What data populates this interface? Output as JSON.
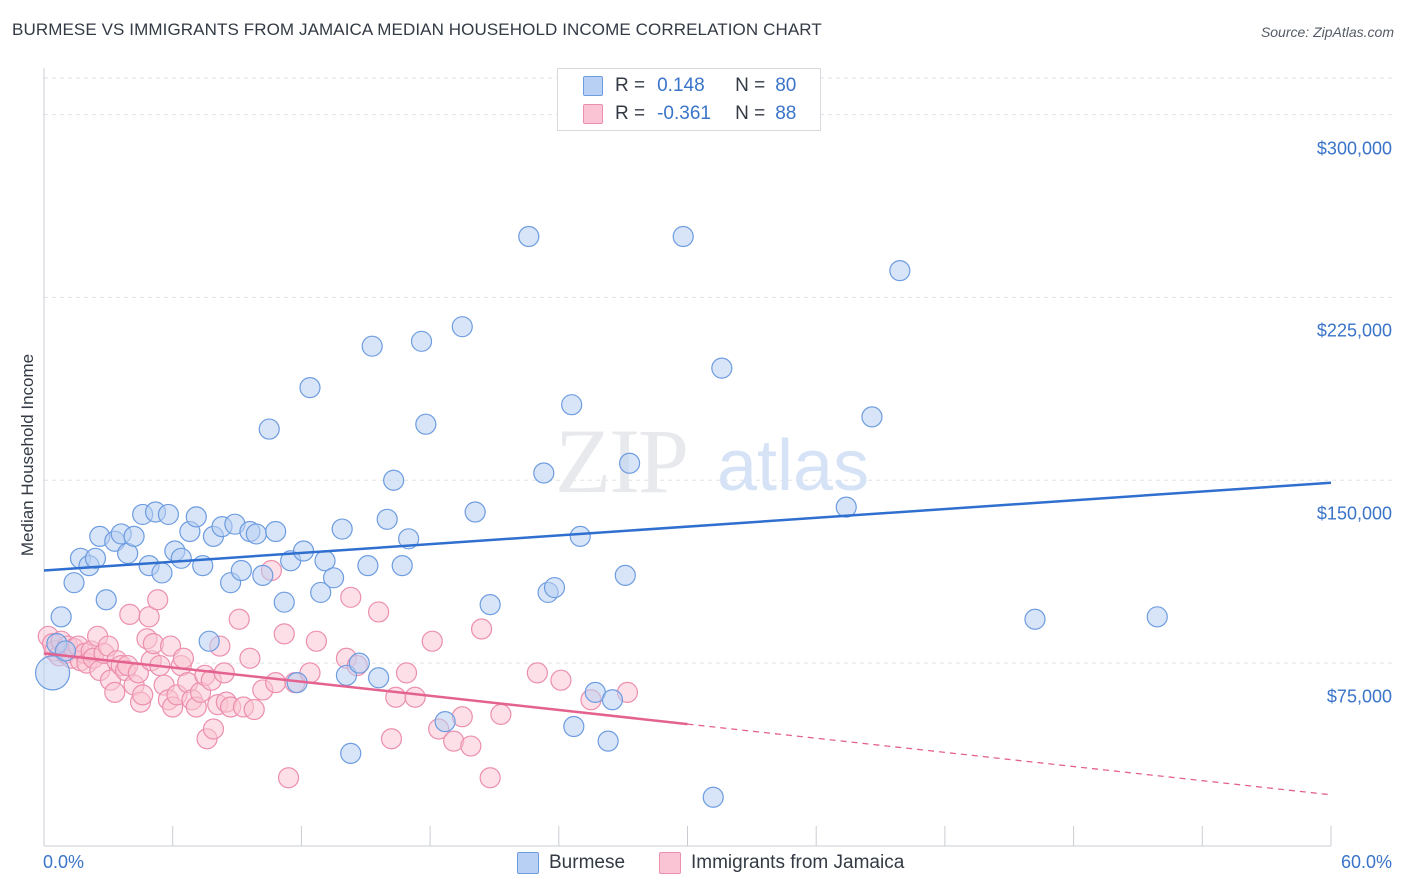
{
  "title": "BURMESE VS IMMIGRANTS FROM JAMAICA MEDIAN HOUSEHOLD INCOME CORRELATION CHART",
  "source": "Source: ZipAtlas.com",
  "watermark": {
    "zip": "ZIP",
    "atlas": "atlas"
  },
  "legend": {
    "rows": [
      {
        "r_label": "R =",
        "r_value": "0.148",
        "n_label": "N =",
        "n_value": "80"
      },
      {
        "r_label": "R =",
        "r_value": "-0.361",
        "n_label": "N =",
        "n_value": "88"
      }
    ]
  },
  "colors": {
    "blue_fill": "#b8d0f3",
    "blue_stroke": "#6d9ce0",
    "blue_line": "#2f6fcf",
    "pink_fill": "#fac4d4",
    "pink_stroke": "#ec8fae",
    "pink_line": "#e4628f",
    "tick_text": "#3a74c9"
  },
  "chart_data": {
    "type": "scatter",
    "title": "BURMESE VS IMMIGRANTS FROM JAMAICA MEDIAN HOUSEHOLD INCOME CORRELATION CHART",
    "xlabel": "",
    "ylabel": "Median Household Income",
    "xlim": [
      0,
      60
    ],
    "ylim": [
      0,
      315000
    ],
    "x_tick_labels": [
      "0.0%",
      "60.0%"
    ],
    "y_ticks": [
      75000,
      150000,
      225000,
      300000
    ],
    "y_tick_labels": [
      "$75,000",
      "$150,000",
      "$225,000",
      "$300,000"
    ],
    "grid": true,
    "legend_position": "top-center",
    "series": [
      {
        "name": "Burmese",
        "color": "#6d9ce0",
        "r": 0.148,
        "n": 80,
        "trend": {
          "x": [
            0,
            60
          ],
          "y": [
            113000,
            149000
          ],
          "extrapolated_from": null
        },
        "points": [
          [
            0.4,
            71000
          ],
          [
            0.8,
            94000
          ],
          [
            0.6,
            83000
          ],
          [
            1.0,
            80000
          ],
          [
            1.4,
            108000
          ],
          [
            1.7,
            118000
          ],
          [
            2.1,
            115000
          ],
          [
            2.4,
            118000
          ],
          [
            2.6,
            127000
          ],
          [
            2.9,
            101000
          ],
          [
            3.3,
            125000
          ],
          [
            3.6,
            128000
          ],
          [
            3.9,
            120000
          ],
          [
            4.2,
            127000
          ],
          [
            4.6,
            136000
          ],
          [
            4.9,
            115000
          ],
          [
            5.2,
            137000
          ],
          [
            5.5,
            112000
          ],
          [
            5.8,
            136000
          ],
          [
            6.1,
            121000
          ],
          [
            6.4,
            118000
          ],
          [
            6.8,
            129000
          ],
          [
            7.1,
            135000
          ],
          [
            7.4,
            115000
          ],
          [
            7.7,
            84000
          ],
          [
            7.9,
            127000
          ],
          [
            8.3,
            131000
          ],
          [
            8.7,
            108000
          ],
          [
            8.9,
            132000
          ],
          [
            9.2,
            113000
          ],
          [
            9.6,
            129000
          ],
          [
            9.9,
            128000
          ],
          [
            10.2,
            111000
          ],
          [
            10.5,
            171000
          ],
          [
            10.8,
            129000
          ],
          [
            11.2,
            100000
          ],
          [
            11.5,
            117000
          ],
          [
            11.8,
            67000
          ],
          [
            12.1,
            121000
          ],
          [
            12.4,
            188000
          ],
          [
            12.9,
            104000
          ],
          [
            13.1,
            117000
          ],
          [
            13.5,
            110000
          ],
          [
            13.9,
            130000
          ],
          [
            14.1,
            70000
          ],
          [
            14.3,
            38000
          ],
          [
            14.7,
            75000
          ],
          [
            15.1,
            115000
          ],
          [
            15.3,
            205000
          ],
          [
            15.6,
            69000
          ],
          [
            16.0,
            134000
          ],
          [
            16.3,
            150000
          ],
          [
            16.7,
            115000
          ],
          [
            17.0,
            126000
          ],
          [
            17.6,
            207000
          ],
          [
            17.8,
            173000
          ],
          [
            18.7,
            51000
          ],
          [
            19.5,
            213000
          ],
          [
            20.1,
            137000
          ],
          [
            20.8,
            99000
          ],
          [
            22.6,
            250000
          ],
          [
            23.3,
            153000
          ],
          [
            23.5,
            104000
          ],
          [
            23.8,
            106000
          ],
          [
            24.6,
            181000
          ],
          [
            24.7,
            49000
          ],
          [
            25.0,
            127000
          ],
          [
            25.7,
            63000
          ],
          [
            26.3,
            43000
          ],
          [
            26.5,
            60000
          ],
          [
            27.1,
            111000
          ],
          [
            27.3,
            157000
          ],
          [
            29.8,
            250000
          ],
          [
            31.2,
            20000
          ],
          [
            31.6,
            196000
          ],
          [
            37.4,
            139000
          ],
          [
            38.6,
            176000
          ],
          [
            39.9,
            236000
          ],
          [
            46.2,
            93000
          ],
          [
            51.9,
            94000
          ]
        ]
      },
      {
        "name": "Immigrants from Jamaica",
        "color": "#ec8fae",
        "r": -0.361,
        "n": 88,
        "trend": {
          "x": [
            0,
            30
          ],
          "y": [
            79000,
            50000
          ],
          "dashed_to": {
            "x": 60,
            "y": 21000
          }
        },
        "points": [
          [
            0.2,
            86000
          ],
          [
            0.4,
            83000
          ],
          [
            0.5,
            80000
          ],
          [
            0.7,
            78000
          ],
          [
            0.8,
            84000
          ],
          [
            1.0,
            79000
          ],
          [
            1.1,
            82000
          ],
          [
            1.3,
            77000
          ],
          [
            1.4,
            81000
          ],
          [
            1.6,
            82000
          ],
          [
            1.7,
            76000
          ],
          [
            1.9,
            79000
          ],
          [
            2.0,
            75000
          ],
          [
            2.2,
            80000
          ],
          [
            2.3,
            77000
          ],
          [
            2.5,
            86000
          ],
          [
            2.6,
            72000
          ],
          [
            2.8,
            79000
          ],
          [
            3.0,
            82000
          ],
          [
            3.1,
            68000
          ],
          [
            3.3,
            63000
          ],
          [
            3.4,
            76000
          ],
          [
            3.6,
            74000
          ],
          [
            3.8,
            72000
          ],
          [
            3.9,
            74000
          ],
          [
            4.0,
            95000
          ],
          [
            4.2,
            66000
          ],
          [
            4.4,
            71000
          ],
          [
            4.5,
            59000
          ],
          [
            4.6,
            62000
          ],
          [
            4.8,
            85000
          ],
          [
            4.9,
            94000
          ],
          [
            5.0,
            76000
          ],
          [
            5.1,
            83000
          ],
          [
            5.3,
            101000
          ],
          [
            5.4,
            74000
          ],
          [
            5.6,
            66000
          ],
          [
            5.8,
            60000
          ],
          [
            5.9,
            82000
          ],
          [
            6.0,
            57000
          ],
          [
            6.2,
            62000
          ],
          [
            6.4,
            74000
          ],
          [
            6.5,
            77000
          ],
          [
            6.7,
            67000
          ],
          [
            6.9,
            60000
          ],
          [
            7.1,
            57000
          ],
          [
            7.3,
            63000
          ],
          [
            7.5,
            70000
          ],
          [
            7.6,
            44000
          ],
          [
            7.8,
            68000
          ],
          [
            7.9,
            48000
          ],
          [
            8.1,
            58000
          ],
          [
            8.2,
            82000
          ],
          [
            8.4,
            71000
          ],
          [
            8.5,
            59000
          ],
          [
            8.7,
            57000
          ],
          [
            9.1,
            93000
          ],
          [
            9.3,
            57000
          ],
          [
            9.6,
            77000
          ],
          [
            9.8,
            56000
          ],
          [
            10.2,
            64000
          ],
          [
            10.6,
            113000
          ],
          [
            10.8,
            67000
          ],
          [
            11.2,
            87000
          ],
          [
            11.4,
            28000
          ],
          [
            11.7,
            67000
          ],
          [
            12.4,
            71000
          ],
          [
            12.7,
            84000
          ],
          [
            14.1,
            77000
          ],
          [
            14.3,
            102000
          ],
          [
            14.6,
            74000
          ],
          [
            15.6,
            96000
          ],
          [
            16.2,
            44000
          ],
          [
            16.4,
            61000
          ],
          [
            16.9,
            71000
          ],
          [
            17.3,
            61000
          ],
          [
            18.1,
            84000
          ],
          [
            18.4,
            48000
          ],
          [
            19.1,
            43000
          ],
          [
            19.5,
            53000
          ],
          [
            19.9,
            41000
          ],
          [
            20.4,
            89000
          ],
          [
            20.8,
            28000
          ],
          [
            21.3,
            54000
          ],
          [
            23.0,
            71000
          ],
          [
            24.1,
            68000
          ],
          [
            25.5,
            60000
          ],
          [
            27.2,
            63000
          ]
        ]
      }
    ]
  },
  "bottom_legend": [
    {
      "label": "Burmese"
    },
    {
      "label": "Immigrants from Jamaica"
    }
  ]
}
